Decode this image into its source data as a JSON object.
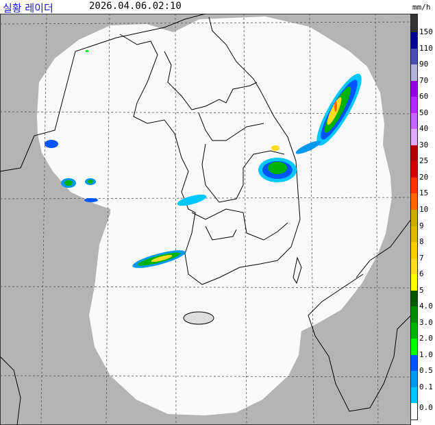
{
  "header": {
    "title": "실황 레이더",
    "timestamp": "2026.04.06.02:10",
    "unit": "mm/h"
  },
  "colors": {
    "outside_coverage": "#b4b4b4",
    "coverage": "#fafafa",
    "coastline": "#000000",
    "grid": "#555555"
  },
  "legend": {
    "top_color": "#333333",
    "items": [
      {
        "label": "150",
        "color": "#000390"
      },
      {
        "label": "110",
        "color": "#4c4eb1"
      },
      {
        "label": "90",
        "color": "#b3b4de"
      },
      {
        "label": "70",
        "color": "#9300e4"
      },
      {
        "label": "60",
        "color": "#b329ff"
      },
      {
        "label": "50",
        "color": "#c963ff"
      },
      {
        "label": "40",
        "color": "#e0a9ff"
      },
      {
        "label": "30",
        "color": "#b40000"
      },
      {
        "label": "25",
        "color": "#d20000"
      },
      {
        "label": "20",
        "color": "#ff3200"
      },
      {
        "label": "15",
        "color": "#ff6600"
      },
      {
        "label": "10",
        "color": "#ccaa00"
      },
      {
        "label": "9",
        "color": "#e0b900"
      },
      {
        "label": "8",
        "color": "#f9cd00"
      },
      {
        "label": "7",
        "color": "#ffdc1f"
      },
      {
        "label": "6",
        "color": "#ffff00"
      },
      {
        "label": "5",
        "color": "#005a00"
      },
      {
        "label": "4.0",
        "color": "#008c00"
      },
      {
        "label": "3.0",
        "color": "#00b300"
      },
      {
        "label": "2.0",
        "color": "#00ff00"
      },
      {
        "label": "1.0",
        "color": "#0055ff"
      },
      {
        "label": "0.5",
        "color": "#0099ee"
      },
      {
        "label": "0.1",
        "color": "#00c8ff"
      },
      {
        "label": "0.0",
        "color": "#fafafa"
      }
    ]
  }
}
